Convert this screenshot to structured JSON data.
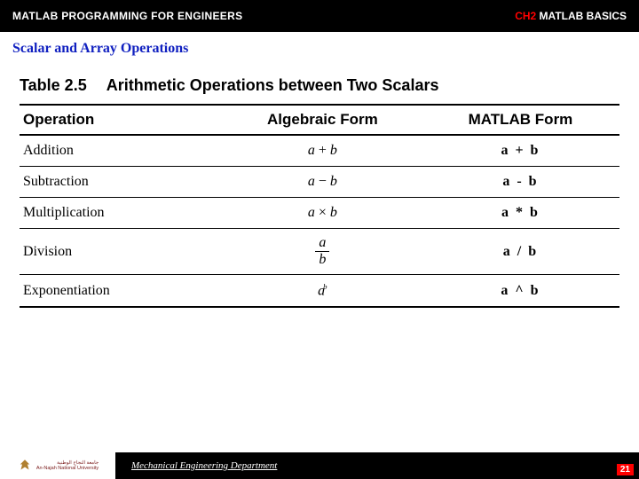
{
  "header": {
    "left": "MATLAB PROGRAMMING FOR ENGINEERS",
    "right_ch": "CH2",
    "right_rest": " MATLAB BASICS"
  },
  "subtitle": "Scalar and Array Operations",
  "table": {
    "label": "Table 2.5",
    "caption": "Arithmetic Operations between Two Scalars",
    "columns": {
      "operation": "Operation",
      "algebraic": "Algebraic Form",
      "matlab": "MATLAB Form"
    },
    "rows": [
      {
        "op": "Addition",
        "alg_a": "a",
        "alg_sym": " + ",
        "alg_b": "b",
        "mat": "a + b",
        "kind": "infix"
      },
      {
        "op": "Subtraction",
        "alg_a": "a",
        "alg_sym": " − ",
        "alg_b": "b",
        "mat": "a - b",
        "kind": "infix"
      },
      {
        "op": "Multiplication",
        "alg_a": "a",
        "alg_sym": " × ",
        "alg_b": "b",
        "mat": "a * b",
        "kind": "infix"
      },
      {
        "op": "Division",
        "alg_a": "a",
        "alg_b": "b",
        "mat": "a / b",
        "kind": "frac"
      },
      {
        "op": "Exponentiation",
        "alg_a": "a",
        "alg_b": "b",
        "mat": "a ^ b",
        "kind": "sup"
      }
    ]
  },
  "footer": {
    "dept": "Mechanical Engineering Department",
    "page": "21",
    "uni_ar": "جامعة النجاح الوطنية",
    "uni_en": "An-Najah National University"
  },
  "colors": {
    "header_bg": "#000000",
    "header_text": "#ffffff",
    "ch_color": "#ff0000",
    "subtitle_color": "#1020c0",
    "page_bg": "#ff0000"
  }
}
